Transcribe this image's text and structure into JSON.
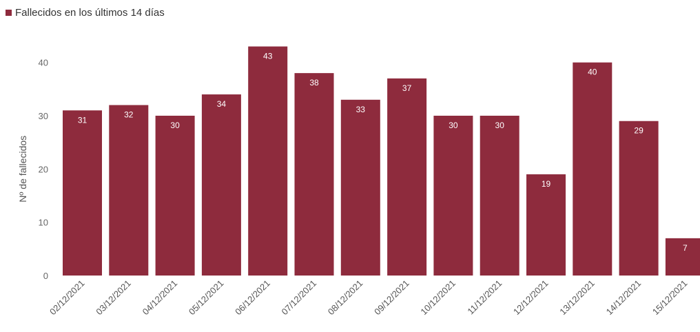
{
  "chart_data": {
    "type": "bar",
    "legend": {
      "label": "Fallecidos en los últimos 14 días",
      "position": "top-left"
    },
    "categories": [
      "02/12/2021",
      "03/12/2021",
      "04/12/2021",
      "05/12/2021",
      "06/12/2021",
      "07/12/2021",
      "08/12/2021",
      "09/12/2021",
      "10/12/2021",
      "11/12/2021",
      "12/12/2021",
      "13/12/2021",
      "14/12/2021",
      "15/12/2021"
    ],
    "series": [
      {
        "name": "Fallecidos en los últimos 14 días",
        "values": [
          31,
          32,
          30,
          34,
          43,
          38,
          33,
          37,
          30,
          30,
          19,
          40,
          29,
          7
        ]
      }
    ],
    "xlabel": "",
    "ylabel": "Nº de fallecidos",
    "ylim": [
      0,
      45
    ],
    "yticks": [
      0,
      10,
      20,
      30,
      40
    ],
    "grid": false,
    "bar_color": "#8e2b3d",
    "data_labels": true,
    "xtick_rotation": -45
  }
}
